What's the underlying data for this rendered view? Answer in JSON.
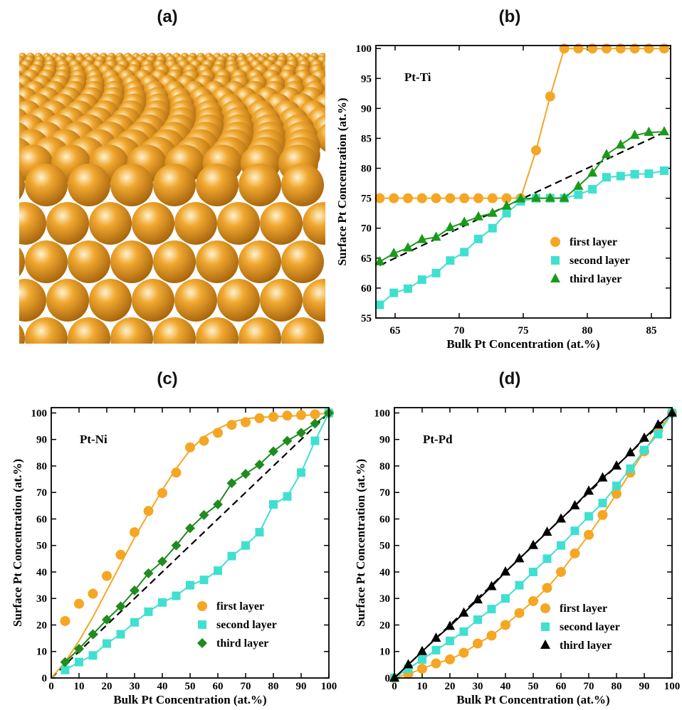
{
  "panel_labels": [
    "(a)",
    "(b)",
    "(c)",
    "(d)"
  ],
  "colors": {
    "first": "#f5a623",
    "second": "#40e0d0",
    "third_b": "#1a9a1a",
    "third_c": "#1e8c1e",
    "third_d": "#000000",
    "ideal": "#000000",
    "sphere": "#f0a830"
  },
  "chart_data": [
    {
      "panel": "(b)",
      "type": "line",
      "inset_text": "Pt-Ti",
      "xlabel": "Bulk Pt Concentration (at.%)",
      "ylabel": "Surface Pt Concentration (at.%)",
      "xlim": [
        63.5,
        86.5
      ],
      "ylim": [
        55,
        100.5
      ],
      "xticks": [
        65,
        70,
        75,
        80,
        85
      ],
      "yticks": [
        55,
        60,
        65,
        70,
        75,
        80,
        85,
        90,
        95,
        100
      ],
      "legend": "bottom-right",
      "ideal_line": [
        [
          63.8,
          63.8
        ],
        [
          86,
          86
        ]
      ],
      "series": [
        {
          "name": "first layer",
          "marker": "circle",
          "x": [
            63.8,
            64.9,
            66.0,
            67.1,
            68.2,
            69.3,
            70.4,
            71.5,
            72.6,
            73.7,
            74.8,
            76.0,
            77.1,
            78.2,
            79.3,
            80.4,
            81.5,
            82.6,
            83.7,
            84.8,
            86.0
          ],
          "y": [
            75,
            75,
            75,
            75,
            75,
            75,
            75,
            75,
            75,
            75,
            75,
            83,
            92,
            100,
            100,
            100,
            100,
            100,
            100,
            100,
            100
          ]
        },
        {
          "name": "second layer",
          "marker": "square",
          "x": [
            63.8,
            64.9,
            66.0,
            67.1,
            68.2,
            69.3,
            70.4,
            71.5,
            72.6,
            73.7,
            74.8,
            76.0,
            77.1,
            78.2,
            79.3,
            80.4,
            81.5,
            82.6,
            83.7,
            84.8,
            86.0
          ],
          "y": [
            57.2,
            59.2,
            59.9,
            61.4,
            62.5,
            64.6,
            66.0,
            68.2,
            70.0,
            72.5,
            74.5,
            75,
            75,
            75,
            75.6,
            76.5,
            78.5,
            78.7,
            79.0,
            79.1,
            79.6
          ]
        },
        {
          "name": "third layer",
          "marker": "triangle",
          "x": [
            63.8,
            64.9,
            66.0,
            67.1,
            68.2,
            69.3,
            70.4,
            71.5,
            72.6,
            73.7,
            74.8,
            76.0,
            77.1,
            78.2,
            79.3,
            80.4,
            81.5,
            82.6,
            83.7,
            84.8,
            86.0
          ],
          "y": [
            64.4,
            65.8,
            66.7,
            68.1,
            68.5,
            70.1,
            71.0,
            71.9,
            72.5,
            73.7,
            74.9,
            75,
            75,
            75,
            77.0,
            79.2,
            82.3,
            83.9,
            85.5,
            86.0,
            86.1
          ]
        }
      ]
    },
    {
      "panel": "(c)",
      "type": "line",
      "inset_text": "Pt-Ni",
      "xlabel": "Bulk Pt Concentration (at.%)",
      "ylabel": "Surface Pt Concentration (at.%)",
      "xlim": [
        0,
        100
      ],
      "ylim": [
        0,
        102
      ],
      "xticks": [
        0,
        10,
        20,
        30,
        40,
        50,
        60,
        70,
        80,
        90,
        100
      ],
      "yticks": [
        0,
        10,
        20,
        30,
        40,
        50,
        60,
        70,
        80,
        90,
        100
      ],
      "legend": "bottom-right",
      "ideal_line": [
        [
          0,
          0
        ],
        [
          100,
          100
        ]
      ],
      "series": [
        {
          "name": "first layer",
          "marker": "circle",
          "x": [
            5,
            10,
            15,
            20,
            25,
            30,
            35,
            40,
            45,
            50,
            55,
            60,
            65,
            70,
            75,
            80,
            85,
            90,
            95,
            100
          ],
          "y": [
            21.5,
            28,
            31.8,
            38.5,
            46.5,
            55,
            63,
            69.8,
            77.5,
            87,
            89.5,
            92.5,
            95.5,
            96.5,
            98,
            98.5,
            99,
            99.2,
            99.5,
            100
          ],
          "fit_x": [
            0,
            5,
            10,
            15,
            20,
            25,
            30,
            35,
            40,
            45,
            50,
            55,
            60,
            65,
            70,
            75,
            80,
            85,
            90,
            95,
            100
          ],
          "fit_y": [
            0,
            6,
            14,
            23,
            33,
            43,
            53,
            62,
            71,
            79,
            86,
            91,
            94,
            96.5,
            97.8,
            98.3,
            98.6,
            98.8,
            99,
            99.4,
            100
          ]
        },
        {
          "name": "second layer",
          "marker": "square",
          "x": [
            5,
            10,
            15,
            20,
            25,
            30,
            35,
            40,
            45,
            50,
            55,
            60,
            65,
            70,
            75,
            80,
            85,
            90,
            95,
            100
          ],
          "y": [
            3,
            6,
            8.5,
            13,
            16.5,
            21,
            25,
            28.5,
            31,
            35,
            37,
            40.5,
            46,
            50,
            55,
            65.5,
            68.5,
            77.5,
            89.5,
            100
          ]
        },
        {
          "name": "third layer",
          "marker": "diamond",
          "x": [
            5,
            10,
            15,
            20,
            25,
            30,
            35,
            40,
            45,
            50,
            55,
            60,
            65,
            70,
            75,
            80,
            85,
            90,
            95,
            100
          ],
          "y": [
            6,
            11,
            16.5,
            22,
            27,
            33,
            39.5,
            44,
            50,
            56.5,
            61.5,
            65.5,
            73.5,
            77,
            80.5,
            85.5,
            89.5,
            92.5,
            96,
            100
          ]
        }
      ]
    },
    {
      "panel": "(d)",
      "type": "line",
      "inset_text": "Pt-Pd",
      "xlabel": "Bulk Pt Concentration (at.%)",
      "ylabel": "Surface Pt Concentration (at.%)",
      "xlim": [
        0,
        100
      ],
      "ylim": [
        0,
        102
      ],
      "xticks": [
        0,
        10,
        20,
        30,
        40,
        50,
        60,
        70,
        80,
        90,
        100
      ],
      "yticks": [
        0,
        10,
        20,
        30,
        40,
        50,
        60,
        70,
        80,
        90,
        100
      ],
      "legend": "bottom-right",
      "ideal_line": [
        [
          0,
          0
        ],
        [
          100,
          100
        ]
      ],
      "series": [
        {
          "name": "first layer",
          "marker": "circle",
          "x": [
            0,
            5,
            10,
            15,
            20,
            25,
            30,
            35,
            40,
            45,
            50,
            55,
            60,
            65,
            70,
            75,
            80,
            85,
            90,
            95,
            100
          ],
          "y": [
            0,
            1.5,
            3.5,
            5.5,
            7,
            9.5,
            13,
            16,
            20,
            24.5,
            29,
            34,
            40,
            47,
            54,
            61.5,
            69.5,
            77.5,
            85.5,
            93.5,
            100
          ]
        },
        {
          "name": "second layer",
          "marker": "square",
          "x": [
            0,
            5,
            10,
            15,
            20,
            25,
            30,
            35,
            40,
            45,
            50,
            55,
            60,
            65,
            70,
            75,
            80,
            85,
            90,
            95,
            100
          ],
          "y": [
            0,
            3.5,
            7,
            10.5,
            14,
            17.5,
            22,
            26,
            30,
            35,
            40,
            45,
            50,
            55.5,
            61,
            66,
            72.5,
            79,
            86,
            92,
            100
          ]
        },
        {
          "name": "third layer",
          "marker": "triangle",
          "x": [
            0,
            5,
            10,
            15,
            20,
            25,
            30,
            35,
            40,
            45,
            50,
            55,
            60,
            65,
            70,
            75,
            80,
            85,
            90,
            95,
            100
          ],
          "y": [
            0,
            5,
            10,
            15,
            19.5,
            24.5,
            29.5,
            34.5,
            40,
            45,
            50,
            55,
            60,
            65,
            70.5,
            75.5,
            80,
            85,
            90.5,
            95.5,
            100
          ]
        }
      ]
    }
  ]
}
